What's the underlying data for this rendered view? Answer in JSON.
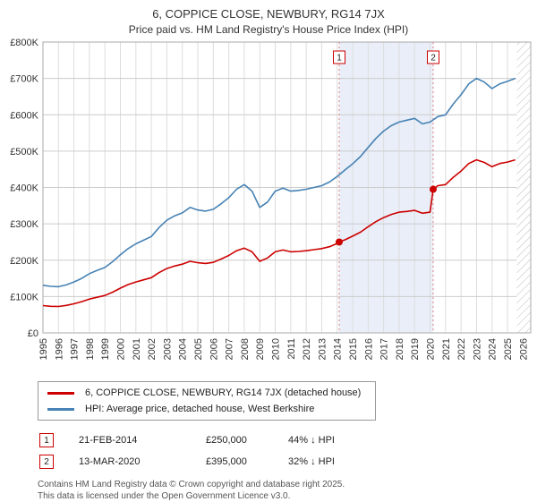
{
  "chart_data": {
    "type": "line",
    "title": "6, COPPICE CLOSE, NEWBURY, RG14 7JX",
    "subtitle": "Price paid vs. HM Land Registry's House Price Index (HPI)",
    "xlabel": "",
    "ylabel": "",
    "xlim": [
      1995,
      2026.5
    ],
    "ylim": [
      0,
      800000
    ],
    "grid": true,
    "legend_position": "bottom",
    "y_ticks": [
      "£0",
      "£100K",
      "£200K",
      "£300K",
      "£400K",
      "£500K",
      "£600K",
      "£700K",
      "£800K"
    ],
    "y_tick_values": [
      0,
      100000,
      200000,
      300000,
      400000,
      500000,
      600000,
      700000,
      800000
    ],
    "x_ticks": [
      1995,
      1996,
      1997,
      1998,
      1999,
      2000,
      2001,
      2002,
      2003,
      2004,
      2005,
      2006,
      2007,
      2008,
      2009,
      2010,
      2011,
      2012,
      2013,
      2014,
      2015,
      2016,
      2017,
      2018,
      2019,
      2020,
      2021,
      2022,
      2023,
      2024,
      2025,
      2026
    ],
    "colors": {
      "property_line": "#cc0000",
      "hpi_line": "#4682b4",
      "shade": "#e9eef8",
      "sale_line": "#e08080",
      "sale_marker": "#cc0000",
      "grid_v": "#dddddd",
      "grid_h": "#cccccc",
      "frame": "#aaaaaa",
      "hatch": "#bbbbbb"
    },
    "shaded_region": [
      2014.13,
      2020.2
    ],
    "hatched_region": [
      2025.6,
      2026.5
    ],
    "sales": [
      {
        "n": "1",
        "x": 2014.13,
        "y": 250000
      },
      {
        "n": "2",
        "x": 2020.2,
        "y": 395000
      }
    ],
    "series": [
      {
        "name": "6, COPPICE CLOSE, NEWBURY, RG14 7JX (detached house)",
        "color": "#cc0000",
        "points": [
          [
            1995.0,
            75000
          ],
          [
            1995.5,
            73000
          ],
          [
            1996.0,
            72500
          ],
          [
            1996.5,
            75500
          ],
          [
            1997.0,
            80000
          ],
          [
            1997.5,
            86000
          ],
          [
            1998.0,
            93000
          ],
          [
            1998.5,
            98000
          ],
          [
            1999.0,
            103000
          ],
          [
            1999.5,
            112000
          ],
          [
            2000.0,
            123000
          ],
          [
            2000.5,
            133000
          ],
          [
            2001.0,
            140000
          ],
          [
            2001.5,
            146000
          ],
          [
            2002.0,
            152000
          ],
          [
            2002.5,
            166000
          ],
          [
            2003.0,
            177000
          ],
          [
            2003.5,
            184000
          ],
          [
            2004.0,
            189000
          ],
          [
            2004.5,
            197000
          ],
          [
            2005.0,
            193000
          ],
          [
            2005.5,
            191000
          ],
          [
            2006.0,
            194000
          ],
          [
            2006.5,
            203000
          ],
          [
            2007.0,
            213000
          ],
          [
            2007.5,
            226000
          ],
          [
            2008.0,
            233000
          ],
          [
            2008.5,
            223000
          ],
          [
            2009.0,
            197000
          ],
          [
            2009.5,
            206000
          ],
          [
            2010.0,
            223000
          ],
          [
            2010.5,
            228000
          ],
          [
            2011.0,
            223000
          ],
          [
            2011.5,
            224000
          ],
          [
            2012.0,
            226000
          ],
          [
            2012.5,
            229000
          ],
          [
            2013.0,
            232000
          ],
          [
            2013.5,
            237000
          ],
          [
            2014.0,
            246000
          ],
          [
            2014.13,
            250000
          ],
          [
            2014.5,
            256000
          ],
          [
            2015.0,
            266000
          ],
          [
            2015.5,
            277000
          ],
          [
            2016.0,
            292000
          ],
          [
            2016.5,
            306000
          ],
          [
            2017.0,
            317000
          ],
          [
            2017.5,
            326000
          ],
          [
            2018.0,
            332000
          ],
          [
            2018.5,
            334000
          ],
          [
            2019.0,
            337000
          ],
          [
            2019.5,
            329000
          ],
          [
            2020.0,
            332000
          ],
          [
            2020.2,
            395000
          ],
          [
            2020.5,
            405000
          ],
          [
            2021.0,
            408000
          ],
          [
            2021.5,
            428000
          ],
          [
            2022.0,
            445000
          ],
          [
            2022.5,
            466000
          ],
          [
            2023.0,
            476000
          ],
          [
            2023.5,
            469000
          ],
          [
            2024.0,
            457000
          ],
          [
            2024.5,
            466000
          ],
          [
            2025.0,
            470000
          ],
          [
            2025.5,
            476000
          ]
        ]
      },
      {
        "name": "HPI: Average price, detached house, West Berkshire",
        "color": "#4682b4",
        "points": [
          [
            1995.0,
            131000
          ],
          [
            1995.5,
            128000
          ],
          [
            1996.0,
            127000
          ],
          [
            1996.5,
            132000
          ],
          [
            1997.0,
            140000
          ],
          [
            1997.5,
            150000
          ],
          [
            1998.0,
            163000
          ],
          [
            1998.5,
            172000
          ],
          [
            1999.0,
            180000
          ],
          [
            1999.5,
            196000
          ],
          [
            2000.0,
            215000
          ],
          [
            2000.5,
            232000
          ],
          [
            2001.0,
            245000
          ],
          [
            2001.5,
            255000
          ],
          [
            2002.0,
            265000
          ],
          [
            2002.5,
            290000
          ],
          [
            2003.0,
            310000
          ],
          [
            2003.5,
            322000
          ],
          [
            2004.0,
            330000
          ],
          [
            2004.5,
            345000
          ],
          [
            2005.0,
            338000
          ],
          [
            2005.5,
            335000
          ],
          [
            2006.0,
            340000
          ],
          [
            2006.5,
            355000
          ],
          [
            2007.0,
            372000
          ],
          [
            2007.5,
            395000
          ],
          [
            2008.0,
            408000
          ],
          [
            2008.5,
            390000
          ],
          [
            2009.0,
            345000
          ],
          [
            2009.5,
            360000
          ],
          [
            2010.0,
            390000
          ],
          [
            2010.5,
            398000
          ],
          [
            2011.0,
            390000
          ],
          [
            2011.5,
            392000
          ],
          [
            2012.0,
            395000
          ],
          [
            2012.5,
            400000
          ],
          [
            2013.0,
            405000
          ],
          [
            2013.5,
            415000
          ],
          [
            2014.0,
            430000
          ],
          [
            2014.5,
            448000
          ],
          [
            2015.0,
            465000
          ],
          [
            2015.5,
            485000
          ],
          [
            2016.0,
            510000
          ],
          [
            2016.5,
            535000
          ],
          [
            2017.0,
            555000
          ],
          [
            2017.5,
            570000
          ],
          [
            2018.0,
            580000
          ],
          [
            2018.5,
            585000
          ],
          [
            2019.0,
            590000
          ],
          [
            2019.5,
            575000
          ],
          [
            2020.0,
            580000
          ],
          [
            2020.5,
            595000
          ],
          [
            2021.0,
            600000
          ],
          [
            2021.5,
            630000
          ],
          [
            2022.0,
            655000
          ],
          [
            2022.5,
            685000
          ],
          [
            2023.0,
            700000
          ],
          [
            2023.5,
            690000
          ],
          [
            2024.0,
            672000
          ],
          [
            2024.5,
            685000
          ],
          [
            2025.0,
            692000
          ],
          [
            2025.5,
            700000
          ]
        ]
      }
    ]
  },
  "legend": {
    "items": [
      {
        "label": "6, COPPICE CLOSE, NEWBURY, RG14 7JX (detached house)",
        "color": "#cc0000"
      },
      {
        "label": "HPI: Average price, detached house, West Berkshire",
        "color": "#4682b4"
      }
    ]
  },
  "transactions": [
    {
      "marker": "1",
      "date": "21-FEB-2014",
      "price": "£250,000",
      "hpi": "44% ↓ HPI"
    },
    {
      "marker": "2",
      "date": "13-MAR-2020",
      "price": "£395,000",
      "hpi": "32% ↓ HPI"
    }
  ],
  "footer": {
    "line1": "Contains HM Land Registry data © Crown copyright and database right 2025.",
    "line2": "This data is licensed under the Open Government Licence v3.0."
  }
}
